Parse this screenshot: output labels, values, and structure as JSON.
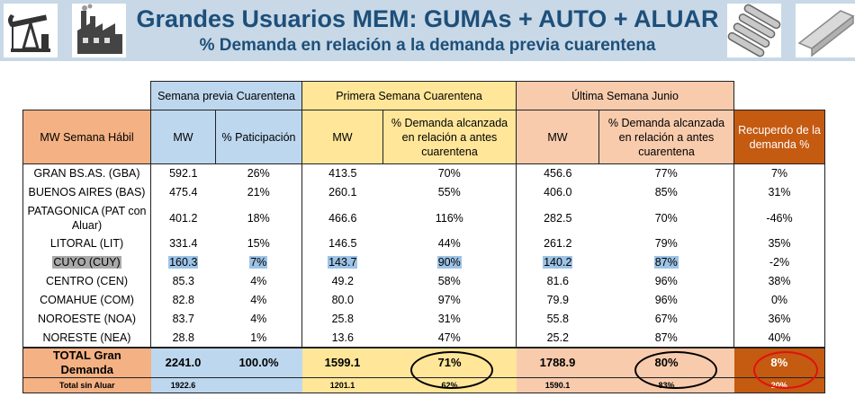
{
  "header": {
    "title": "Grandes Usuarios MEM: GUMAs + AUTO + ALUAR",
    "subtitle": "% Demanda en relación a la demanda previa cuarentena",
    "icons": [
      "oil-pump-icon",
      "factory-icon",
      "metal-pipes-icon",
      "aluminum-profile-icon"
    ]
  },
  "table": {
    "group_headers": {
      "previa": "Semana previa Cuarentena",
      "primera": "Primera Semana Cuarentena",
      "ultima": "Última Semana Junio"
    },
    "col_headers": {
      "region": "MW Semana Hábil",
      "mw_previa": "MW",
      "particip": "% Paticipación",
      "mw_primera": "MW",
      "pct_primera": "% Demanda alcanzada en relación a antes cuarentena",
      "mw_ultima": "MW",
      "pct_ultima": "% Demanda alcanzada en relación a antes cuarentena",
      "recupero": "Recuperdo de la demanda %"
    },
    "rows": [
      {
        "region": "GRAN BS.AS. (GBA)",
        "mw_previa": "592.1",
        "particip": "26%",
        "mw_primera": "413.5",
        "pct_primera": "70%",
        "mw_ultima": "456.6",
        "pct_ultima": "77%",
        "recupero": "7%"
      },
      {
        "region": "BUENOS AIRES (BAS)",
        "mw_previa": "475.4",
        "particip": "21%",
        "mw_primera": "260.1",
        "pct_primera": "55%",
        "mw_ultima": "406.0",
        "pct_ultima": "85%",
        "recupero": "31%"
      },
      {
        "region": "PATAGONICA (PAT con Aluar)",
        "mw_previa": "401.2",
        "particip": "18%",
        "mw_primera": "466.6",
        "pct_primera": "116%",
        "mw_ultima": "282.5",
        "pct_ultima": "70%",
        "recupero": "-46%"
      },
      {
        "region": "LITORAL (LIT)",
        "mw_previa": "331.4",
        "particip": "15%",
        "mw_primera": "146.5",
        "pct_primera": "44%",
        "mw_ultima": "261.2",
        "pct_ultima": "79%",
        "recupero": "35%"
      },
      {
        "region": "CUYO (CUY)",
        "mw_previa": "160.3",
        "particip": "7%",
        "mw_primera": "143.7",
        "pct_primera": "90%",
        "mw_ultima": "140.2",
        "pct_ultima": "87%",
        "recupero": "-2%"
      },
      {
        "region": "CENTRO (CEN)",
        "mw_previa": "85.3",
        "particip": "4%",
        "mw_primera": "49.2",
        "pct_primera": "58%",
        "mw_ultima": "81.6",
        "pct_ultima": "96%",
        "recupero": "38%"
      },
      {
        "region": "COMAHUE (COM)",
        "mw_previa": "82.8",
        "particip": "4%",
        "mw_primera": "80.0",
        "pct_primera": "97%",
        "mw_ultima": "79.9",
        "pct_ultima": "96%",
        "recupero": "0%"
      },
      {
        "region": "NOROESTE (NOA)",
        "mw_previa": "83.7",
        "particip": "4%",
        "mw_primera": "25.8",
        "pct_primera": "31%",
        "mw_ultima": "55.8",
        "pct_ultima": "67%",
        "recupero": "36%"
      },
      {
        "region": "NORESTE (NEA)",
        "mw_previa": "28.8",
        "particip": "1%",
        "mw_primera": "13.6",
        "pct_primera": "47%",
        "mw_ultima": "25.2",
        "pct_ultima": "87%",
        "recupero": "40%"
      }
    ],
    "total": {
      "region": "TOTAL Gran Demanda",
      "mw_previa": "2241.0",
      "particip": "100.0%",
      "mw_primera": "1599.1",
      "pct_primera": "71%",
      "mw_ultima": "1788.9",
      "pct_ultima": "80%",
      "recupero": "8%"
    },
    "subtotal": {
      "region": "Total sin Aluar",
      "mw_previa": "1922.6",
      "mw_primera": "1201.1",
      "pct_primera": "62%",
      "mw_ultima": "1590.1",
      "pct_ultima": "83%",
      "recupero": "20%"
    }
  }
}
